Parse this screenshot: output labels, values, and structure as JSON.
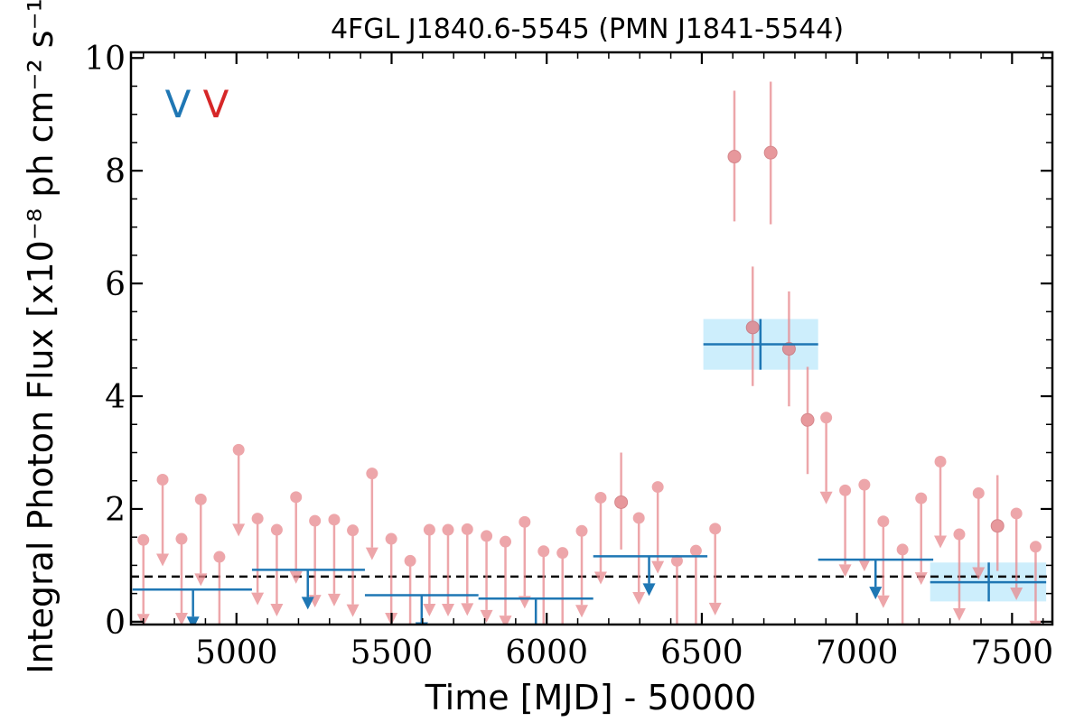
{
  "chart_data": {
    "type": "scatter",
    "title": "4FGL J1840.6-5545 (PMN J1841-5544)",
    "xlabel": "Time [MJD] - 50000",
    "ylabel": "Integral Photon Flux [x10⁻⁸ ph cm⁻² s⁻¹]",
    "xlim": [
      4660,
      7630
    ],
    "ylim": [
      -0.05,
      10.1
    ],
    "x_ticks": [
      5000,
      5500,
      6000,
      6500,
      7000,
      7500
    ],
    "x_tick_labels": [
      "5000",
      "5500",
      "6000",
      "6500",
      "7000",
      "7500"
    ],
    "y_ticks": [
      0,
      2,
      4,
      6,
      8,
      10
    ],
    "y_tick_labels": [
      "0",
      "2",
      "4",
      "6",
      "8",
      "10"
    ],
    "reference_line_y": 0.8,
    "legend": {
      "placement": "top-left",
      "markers": [
        {
          "glyph": "V",
          "color": "#1f77b4"
        },
        {
          "glyph": "V",
          "color": "#d62728"
        }
      ]
    },
    "series": [
      {
        "color": "#e8898e",
        "detections": [
          {
            "x": 6240,
            "y": 2.12,
            "yerr": [
              1.28,
              3.0
            ]
          },
          {
            "x": 6605,
            "y": 8.25,
            "yerr": [
              7.1,
              9.42
            ]
          },
          {
            "x": 6664,
            "y": 5.22,
            "yerr": [
              4.18,
              6.3
            ]
          },
          {
            "x": 6722,
            "y": 8.32,
            "yerr": [
              7.05,
              9.58
            ]
          },
          {
            "x": 6781,
            "y": 4.84,
            "yerr": [
              3.82,
              5.86
            ]
          },
          {
            "x": 6841,
            "y": 3.58,
            "yerr": [
              2.62,
              4.52
            ]
          },
          {
            "x": 7453,
            "y": 1.7,
            "yerr": [
              0.9,
              2.6
            ]
          }
        ],
        "upper_limits": [
          {
            "x": 4700,
            "y": 1.45
          },
          {
            "x": 4762,
            "y": 2.52
          },
          {
            "x": 4823,
            "y": 1.47
          },
          {
            "x": 4885,
            "y": 2.17
          },
          {
            "x": 4945,
            "y": 1.15
          },
          {
            "x": 5007,
            "y": 3.05
          },
          {
            "x": 5068,
            "y": 1.83
          },
          {
            "x": 5130,
            "y": 1.63
          },
          {
            "x": 5192,
            "y": 2.21
          },
          {
            "x": 5253,
            "y": 1.79
          },
          {
            "x": 5315,
            "y": 1.81
          },
          {
            "x": 5375,
            "y": 1.62
          },
          {
            "x": 5437,
            "y": 2.63
          },
          {
            "x": 5499,
            "y": 1.47
          },
          {
            "x": 5560,
            "y": 1.08
          },
          {
            "x": 5622,
            "y": 1.63
          },
          {
            "x": 5682,
            "y": 1.63
          },
          {
            "x": 5744,
            "y": 1.64
          },
          {
            "x": 5806,
            "y": 1.52
          },
          {
            "x": 5867,
            "y": 1.42
          },
          {
            "x": 5929,
            "y": 1.77
          },
          {
            "x": 5990,
            "y": 1.25
          },
          {
            "x": 6051,
            "y": 1.22
          },
          {
            "x": 6113,
            "y": 1.61
          },
          {
            "x": 6174,
            "y": 2.2
          },
          {
            "x": 6297,
            "y": 1.84
          },
          {
            "x": 6358,
            "y": 2.39
          },
          {
            "x": 6420,
            "y": 1.08
          },
          {
            "x": 6481,
            "y": 1.26
          },
          {
            "x": 6543,
            "y": 1.65
          },
          {
            "x": 6901,
            "y": 3.62
          },
          {
            "x": 6962,
            "y": 2.33
          },
          {
            "x": 7024,
            "y": 2.43
          },
          {
            "x": 7085,
            "y": 1.78
          },
          {
            "x": 7147,
            "y": 1.28
          },
          {
            "x": 7207,
            "y": 2.19
          },
          {
            "x": 7269,
            "y": 2.84
          },
          {
            "x": 7330,
            "y": 1.55
          },
          {
            "x": 7392,
            "y": 2.28
          },
          {
            "x": 7514,
            "y": 1.92
          },
          {
            "x": 7576,
            "y": 1.33
          }
        ]
      },
      {
        "color": "#1f77b4",
        "band_color": "#cdeefc",
        "detections": [
          {
            "x": 6689,
            "xerr": [
              6505,
              6875
            ],
            "y": 4.92,
            "yerr": [
              4.47,
              5.37
            ]
          },
          {
            "x": 7425,
            "xerr": [
              7236,
              7610
            ],
            "y": 0.7,
            "yerr": [
              0.36,
              1.05
            ]
          }
        ],
        "upper_limits": [
          {
            "x": 4860,
            "xerr": [
              4665,
              5050
            ],
            "y": 0.57
          },
          {
            "x": 5230,
            "xerr": [
              5050,
              5414
            ],
            "y": 0.92
          },
          {
            "x": 5597,
            "xerr": [
              5414,
              5780
            ],
            "y": 0.47
          },
          {
            "x": 5965,
            "xerr": [
              5780,
              6150
            ],
            "y": 0.41
          },
          {
            "x": 6330,
            "xerr": [
              6150,
              6518
            ],
            "y": 1.16
          },
          {
            "x": 7060,
            "xerr": [
              6875,
              7246
            ],
            "y": 1.1
          }
        ]
      }
    ]
  }
}
